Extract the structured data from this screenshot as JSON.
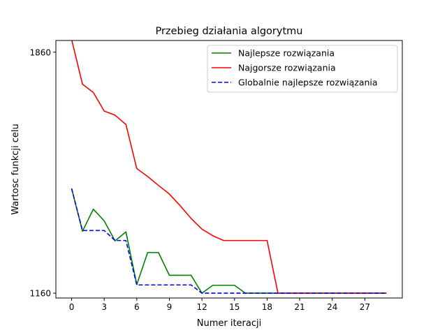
{
  "chart_data": {
    "type": "line",
    "title": "Przebieg działania algorytmu",
    "xlabel": "Numer iteracji",
    "ylabel": "Wartosc funkcji celu",
    "xlim": [
      -1.45,
      30.45
    ],
    "ylim": [
      1146,
      1894
    ],
    "xticks": [
      0,
      3,
      6,
      9,
      12,
      15,
      18,
      21,
      24,
      27
    ],
    "yticks": [
      1160,
      1860
    ],
    "legend_position": "top-right",
    "x": [
      0,
      1,
      2,
      3,
      4,
      5,
      6,
      7,
      8,
      9,
      10,
      11,
      12,
      13,
      14,
      15,
      16,
      17,
      18,
      19,
      20,
      21,
      22,
      23,
      24,
      25,
      26,
      27,
      28,
      29
    ],
    "series": [
      {
        "name": "Najlepsze rozwiązania",
        "color": "#008000",
        "dash": "solid",
        "values": [
          1464,
          1340,
          1404,
          1370,
          1312,
          1338,
          1185,
          1278,
          1278,
          1212,
          1212,
          1212,
          1160,
          1183,
          1183,
          1183,
          1160,
          1160,
          1160,
          1160,
          1160,
          1160,
          1160,
          1160,
          1160,
          1160,
          1160,
          1160,
          1160,
          1160
        ]
      },
      {
        "name": "Najgorsze rozwiązania",
        "color": "#ff0000",
        "dash": "solid",
        "values": [
          1897,
          1767,
          1743,
          1689,
          1677,
          1650,
          1522,
          1499,
          1473,
          1448,
          1414,
          1377,
          1346,
          1327,
          1313,
          1313,
          1313,
          1313,
          1313,
          1160,
          1160,
          1160,
          1160,
          1160,
          1160,
          1160,
          1160,
          1160,
          1160,
          1160
        ]
      },
      {
        "name": "Globalnie najlepsze rozwiązania",
        "color": "#0000ff",
        "dash": "dashed",
        "values": [
          1464,
          1342,
          1342,
          1342,
          1313,
          1313,
          1184,
          1184,
          1184,
          1184,
          1184,
          1184,
          1160,
          1160,
          1160,
          1160,
          1160,
          1160,
          1160,
          1160,
          1160,
          1160,
          1160,
          1160,
          1160,
          1160,
          1160,
          1160,
          1160,
          1160
        ]
      }
    ]
  }
}
